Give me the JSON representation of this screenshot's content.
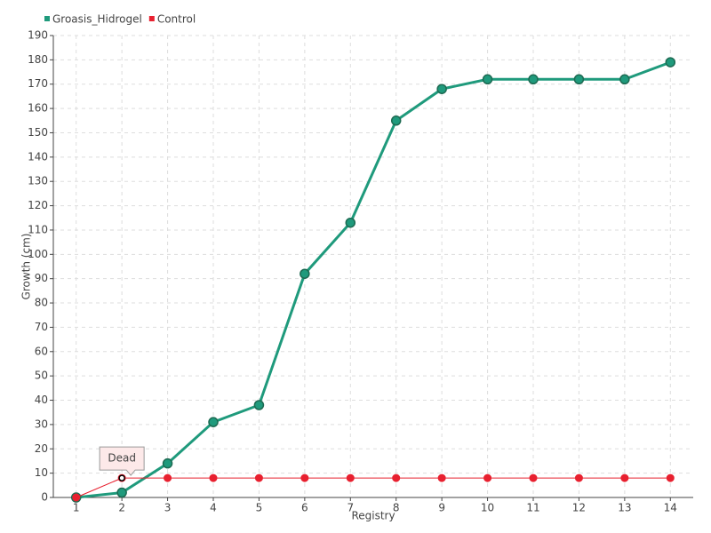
{
  "chart_data": {
    "type": "line",
    "x_label": "Registry",
    "y_label": "Growth (cm)",
    "x": [
      1,
      2,
      3,
      4,
      5,
      6,
      7,
      8,
      9,
      10,
      11,
      12,
      13,
      14
    ],
    "series": [
      {
        "name": "Groasis_Hidrogel",
        "color": "#1f9a7c",
        "values": [
          0,
          2,
          14,
          31,
          38,
          92,
          113,
          155,
          168,
          172,
          172,
          172,
          172,
          179
        ]
      },
      {
        "name": "Control",
        "color": "#e8202f",
        "values": [
          0,
          8,
          8,
          8,
          8,
          8,
          8,
          8,
          8,
          8,
          8,
          8,
          8,
          8
        ]
      }
    ],
    "xlim": [
      0.5,
      14.5
    ],
    "xticks": [
      1,
      2,
      3,
      4,
      5,
      6,
      7,
      8,
      9,
      10,
      11,
      12,
      13,
      14
    ],
    "ylim": [
      0,
      190
    ],
    "yticks": [
      0,
      10,
      20,
      30,
      40,
      50,
      60,
      70,
      80,
      90,
      100,
      110,
      120,
      130,
      140,
      150,
      160,
      170,
      180,
      190
    ],
    "grid": true,
    "legend": "top-left",
    "annotations": [
      {
        "text": "Dead",
        "x": 2,
        "y": 8
      }
    ]
  }
}
